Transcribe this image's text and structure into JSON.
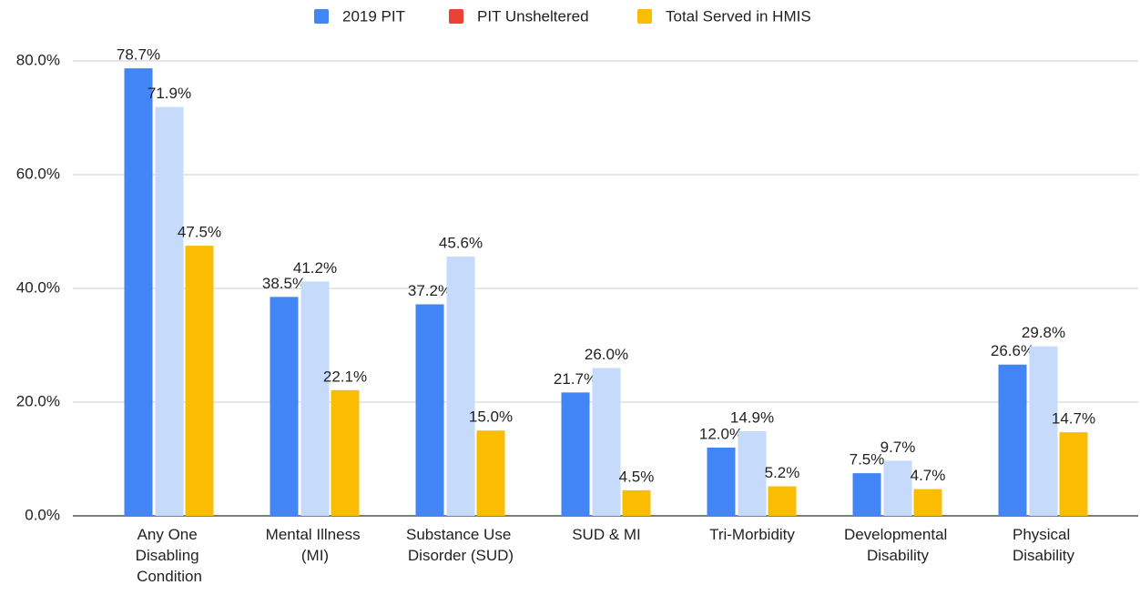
{
  "chart_data": {
    "type": "bar",
    "categories": [
      "Any One Disabling Condition",
      "Mental Illness (MI)",
      "Substance Use Disorder (SUD)",
      "SUD & MI",
      "Tri-Morbidity",
      "Developmental Disability",
      "Physical Disability"
    ],
    "series": [
      {
        "name": "2019 PIT",
        "color": "#4285f4",
        "legend_color": "#4285f4",
        "values": [
          78.7,
          38.5,
          37.2,
          21.7,
          12.0,
          7.5,
          26.6
        ],
        "value_labels": [
          "78.7%",
          "38.5%",
          "37.2%",
          "21.7%",
          "12.0%",
          "7.5%",
          "26.6%"
        ]
      },
      {
        "name": "PIT Unsheltered",
        "color": "#c6dafc",
        "legend_color": "#ea4335",
        "values": [
          71.9,
          41.2,
          45.6,
          26.0,
          14.9,
          9.7,
          29.8
        ],
        "value_labels": [
          "71.9%",
          "41.2%",
          "45.6%",
          "26.0%",
          "14.9%",
          "9.7%",
          "29.8%"
        ]
      },
      {
        "name": "Total Served in HMIS",
        "color": "#fbbc04",
        "legend_color": "#fbbc04",
        "values": [
          47.5,
          22.1,
          15.0,
          4.5,
          5.2,
          4.7,
          14.7
        ],
        "value_labels": [
          "47.5%",
          "22.1%",
          "15.0%",
          "4.5%",
          "5.2%",
          "4.7%",
          "14.7%"
        ]
      }
    ],
    "ylim": [
      0,
      84
    ],
    "yticks": [
      {
        "value": 0,
        "label": "0.0%"
      },
      {
        "value": 20,
        "label": "20.0%"
      },
      {
        "value": 40,
        "label": "40.0%"
      },
      {
        "value": 60,
        "label": "60.0%"
      },
      {
        "value": 80,
        "label": "80.0%"
      }
    ],
    "grid": true,
    "legend": "top"
  }
}
